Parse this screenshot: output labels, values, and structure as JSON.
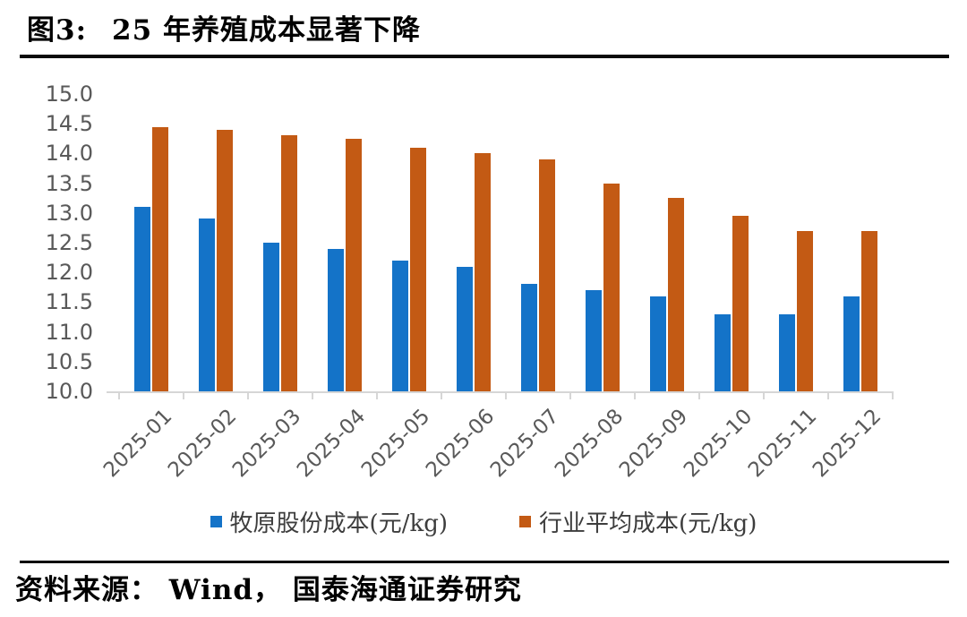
{
  "figure": {
    "label": "图3:",
    "title": "25 年养殖成本显著下降"
  },
  "source_line": "资料来源： Wind， 国泰海通证券研究",
  "chart_data": {
    "type": "bar",
    "title": "25 年养殖成本显著下降",
    "categories": [
      "2025-01",
      "2025-02",
      "2025-03",
      "2025-04",
      "2025-05",
      "2025-06",
      "2025-07",
      "2025-08",
      "2025-09",
      "2025-10",
      "2025-11",
      "2025-12"
    ],
    "series": [
      {
        "name": "牧原股份成本(元/kg)",
        "color": "#1473C8",
        "values": [
          13.1,
          12.9,
          12.5,
          12.4,
          12.2,
          12.1,
          11.8,
          11.7,
          11.6,
          11.3,
          11.3,
          11.6
        ]
      },
      {
        "name": "行业平均成本(元/kg)",
        "color": "#C35A14",
        "values": [
          14.45,
          14.4,
          14.3,
          14.25,
          14.1,
          14.0,
          13.9,
          13.5,
          13.25,
          12.95,
          12.7,
          12.7
        ]
      }
    ],
    "xlabel": "",
    "ylabel": "",
    "ylim": [
      10.0,
      15.0
    ],
    "ytick_step": 0.5,
    "yticks": [
      "15.0",
      "14.5",
      "14.0",
      "13.5",
      "13.0",
      "12.5",
      "12.0",
      "11.5",
      "11.0",
      "10.5",
      "10.0"
    ],
    "grid": false,
    "legend_position": "bottom",
    "axis_text_color": "#595959",
    "baseline_color": "#D6D6D6"
  }
}
